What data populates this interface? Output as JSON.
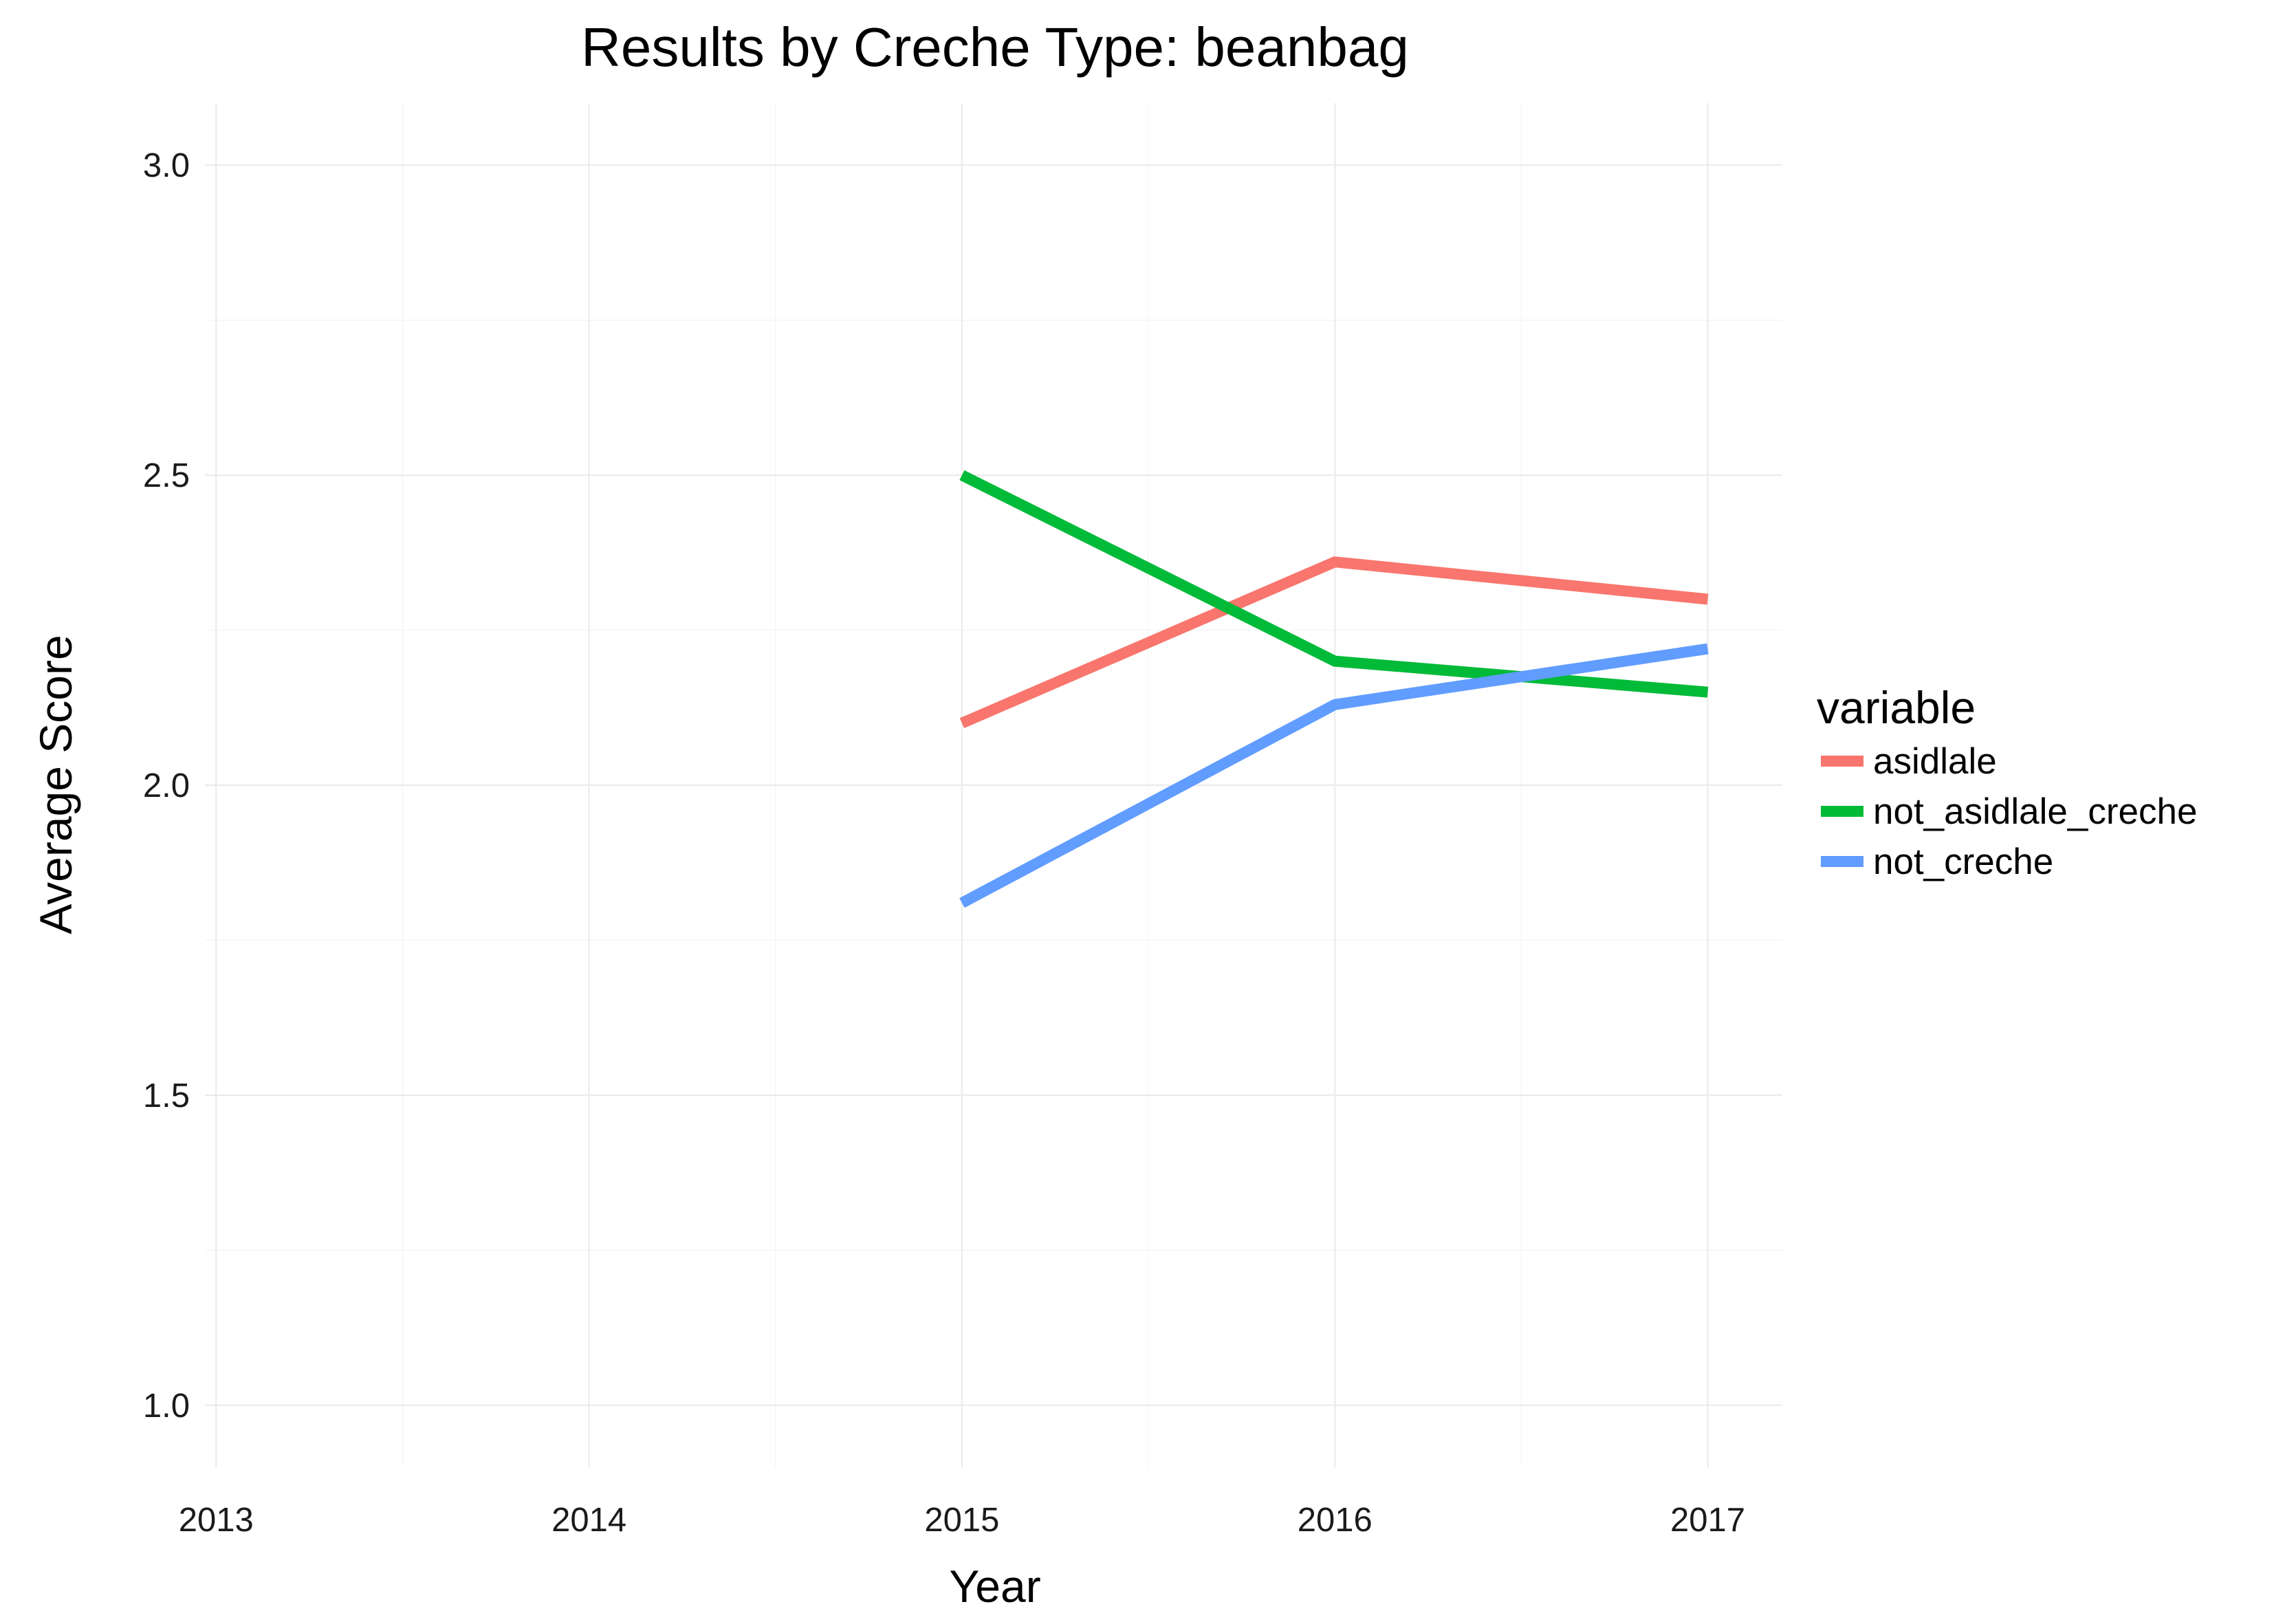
{
  "chart_data": {
    "type": "line",
    "title": "Results by Creche Type: beanbag",
    "xlabel": "Year",
    "ylabel": "Average Score",
    "x": [
      2013,
      2014,
      2015,
      2016,
      2017
    ],
    "x_tick_labels": [
      "2013",
      "2014",
      "2015",
      "2016",
      "2017"
    ],
    "y_ticks": [
      1.0,
      1.5,
      2.0,
      2.5,
      3.0
    ],
    "y_tick_labels": [
      "1.0",
      "1.5",
      "2.0",
      "2.5",
      "3.0"
    ],
    "xlim": [
      2012.97,
      2017.2
    ],
    "ylim": [
      0.9,
      3.1
    ],
    "grid": true,
    "legend": {
      "title": "variable",
      "position": "right"
    },
    "series": [
      {
        "name": "asidlale",
        "color": "#F8766D",
        "x": [
          2015,
          2016,
          2017
        ],
        "y": [
          2.1,
          2.36,
          2.3
        ]
      },
      {
        "name": "not_asidlale_creche",
        "color": "#00BA38",
        "x": [
          2015,
          2016,
          2017
        ],
        "y": [
          2.5,
          2.2,
          2.15
        ]
      },
      {
        "name": "not_creche",
        "color": "#619CFF",
        "x": [
          2015,
          2016,
          2017
        ],
        "y": [
          1.81,
          2.13,
          2.22
        ]
      }
    ]
  }
}
